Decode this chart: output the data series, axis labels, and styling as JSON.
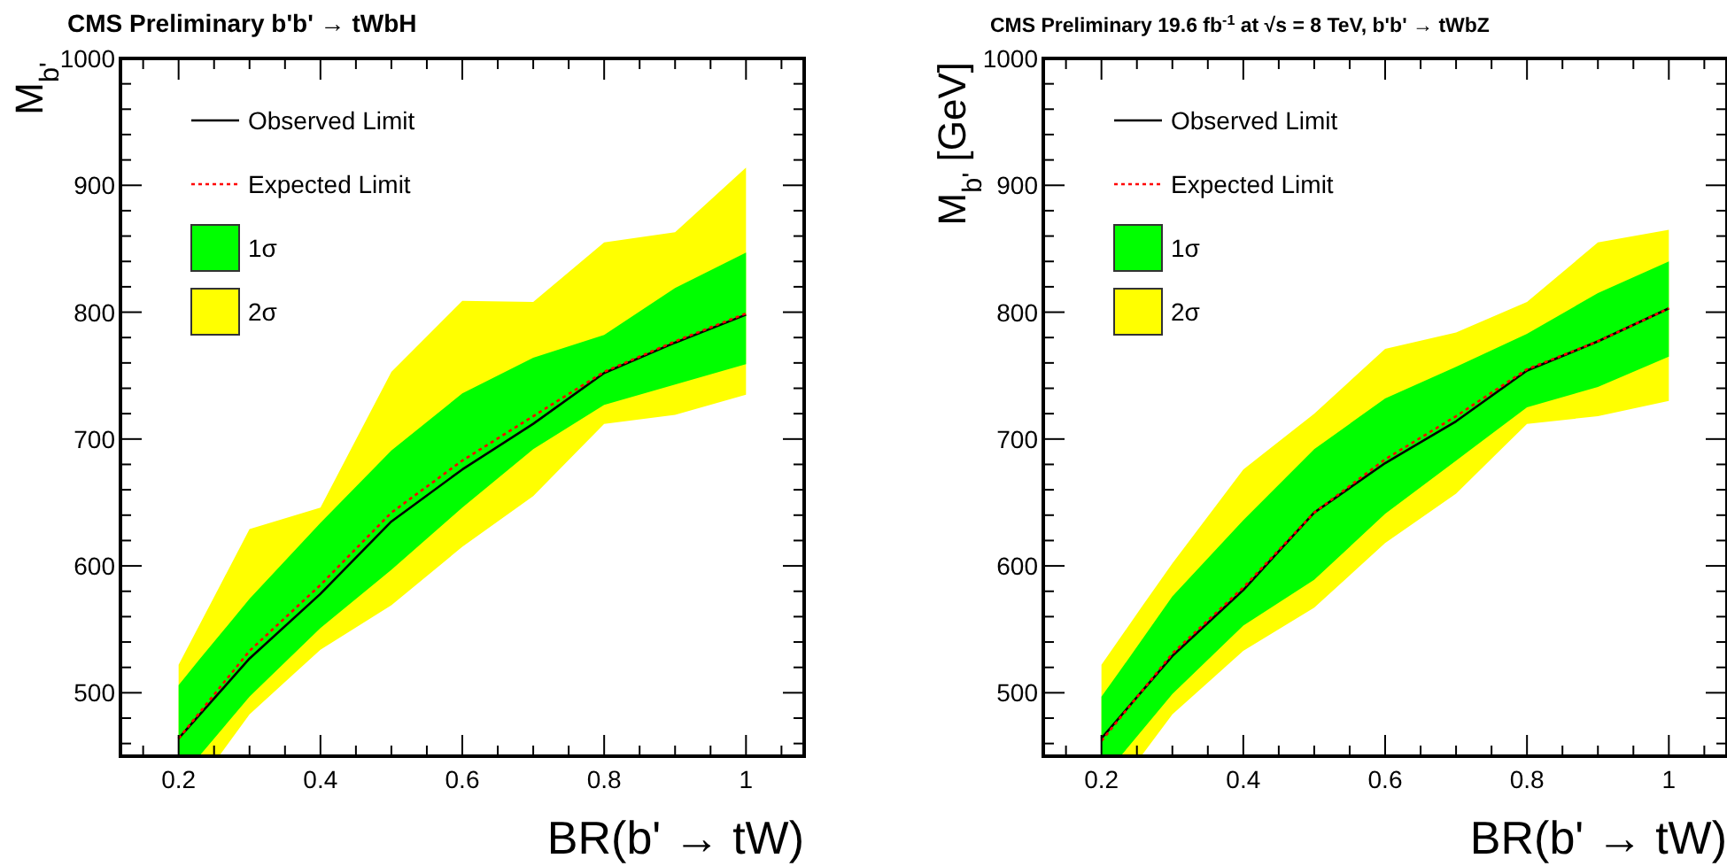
{
  "chart_data": [
    {
      "type": "line",
      "title": "CMS Preliminary b'b' → tWbH",
      "xlabel": "BR(b' → tW)",
      "ylabel": "M$_{b'}$",
      "xlim": [
        0.118,
        1.082
      ],
      "ylim": [
        450,
        1000
      ],
      "xticks": [
        {
          "value": 0.15,
          "label": null
        },
        0.2,
        {
          "value": 0.25,
          "label": null
        },
        {
          "value": 0.3,
          "label": null
        },
        {
          "value": 0.35,
          "label": null
        },
        0.4,
        {
          "value": 0.45,
          "label": null
        },
        {
          "value": 0.5,
          "label": null
        },
        {
          "value": 0.55,
          "label": null
        },
        0.6,
        {
          "value": 0.65,
          "label": null
        },
        {
          "value": 0.7,
          "label": null
        },
        {
          "value": 0.75,
          "label": null
        },
        0.8,
        {
          "value": 0.85,
          "label": null
        },
        {
          "value": 0.9,
          "label": null
        },
        {
          "value": 0.95,
          "label": null
        },
        1,
        {
          "value": 1.05,
          "label": null
        }
      ],
      "yticks": [
        {
          "value": 460,
          "label": null
        },
        {
          "value": 480,
          "label": null
        },
        500,
        {
          "value": 520,
          "label": null
        },
        {
          "value": 540,
          "label": null
        },
        {
          "value": 560,
          "label": null
        },
        {
          "value": 580,
          "label": null
        },
        600,
        {
          "value": 620,
          "label": null
        },
        {
          "value": 640,
          "label": null
        },
        {
          "value": 660,
          "label": null
        },
        {
          "value": 680,
          "label": null
        },
        700,
        {
          "value": 720,
          "label": null
        },
        {
          "value": 740,
          "label": null
        },
        {
          "value": 760,
          "label": null
        },
        {
          "value": 780,
          "label": null
        },
        800,
        {
          "value": 820,
          "label": null
        },
        {
          "value": 840,
          "label": null
        },
        {
          "value": 860,
          "label": null
        },
        {
          "value": 880,
          "label": null
        },
        900,
        {
          "value": 920,
          "label": null
        },
        {
          "value": 940,
          "label": null
        },
        {
          "value": 960,
          "label": null
        },
        {
          "value": 980,
          "label": null
        },
        1000
      ],
      "legend": "top left",
      "x": [
        0.2,
        0.3,
        0.4,
        0.5,
        0.6,
        0.7,
        0.8,
        0.9,
        1.0
      ],
      "series": [
        {
          "name": "Observed Limit",
          "color": "#000000",
          "line_style": "solid",
          "values": [
            464,
            527,
            578,
            635,
            676,
            712,
            752,
            776,
            798
          ]
        },
        {
          "name": "Expected Limit",
          "color": "#ff0000",
          "line_style": "dotted",
          "values": [
            464,
            533,
            585,
            642,
            683,
            718,
            753,
            777,
            799
          ]
        },
        {
          "name": "1σ",
          "type": "area",
          "color": "#00ff00",
          "x": [
            0.2,
            0.229,
            0.3,
            0.4,
            0.5,
            0.6,
            0.7,
            0.8,
            0.9,
            1.0
          ],
          "values": [
            null,
            null,
            null,
            null,
            null,
            null,
            null,
            null,
            null,
            null
          ],
          "lower": [
            450,
            450,
            497,
            551,
            597,
            646,
            692,
            727,
            743,
            759
          ],
          "upper": [
            506,
            526,
            574,
            634,
            691,
            736,
            764,
            782,
            819,
            847
          ]
        },
        {
          "name": "2σ",
          "type": "area",
          "color": "#ffff00",
          "x": [
            0.2,
            0.257,
            0.3,
            0.4,
            0.5,
            0.6,
            0.7,
            0.8,
            0.9,
            1.0
          ],
          "values": [
            null,
            null,
            null,
            null,
            null,
            null,
            null,
            null,
            null,
            null
          ],
          "lower": [
            450,
            450,
            483,
            534,
            569,
            615,
            655,
            712,
            719,
            735
          ],
          "upper": [
            522,
            583,
            629,
            646,
            753,
            809,
            808,
            855,
            863,
            914
          ]
        }
      ]
    },
    {
      "type": "line",
      "title": "CMS Preliminary 19.6 fb$^{-1}$ at  √s = 8 TeV, b'b' → tWbZ",
      "xlabel": "BR(b' → tW)",
      "ylabel": "M$_{b'}$ [GeV]",
      "xlim": [
        0.118,
        1.082
      ],
      "ylim": [
        450,
        1000
      ],
      "xticks": [
        {
          "value": 0.15,
          "label": null
        },
        0.2,
        {
          "value": 0.25,
          "label": null
        },
        {
          "value": 0.3,
          "label": null
        },
        {
          "value": 0.35,
          "label": null
        },
        0.4,
        {
          "value": 0.45,
          "label": null
        },
        {
          "value": 0.5,
          "label": null
        },
        {
          "value": 0.55,
          "label": null
        },
        0.6,
        {
          "value": 0.65,
          "label": null
        },
        {
          "value": 0.7,
          "label": null
        },
        {
          "value": 0.75,
          "label": null
        },
        0.8,
        {
          "value": 0.85,
          "label": null
        },
        {
          "value": 0.9,
          "label": null
        },
        {
          "value": 0.95,
          "label": null
        },
        1,
        {
          "value": 1.05,
          "label": null
        }
      ],
      "yticks": [
        {
          "value": 460,
          "label": null
        },
        {
          "value": 480,
          "label": null
        },
        500,
        {
          "value": 520,
          "label": null
        },
        {
          "value": 540,
          "label": null
        },
        {
          "value": 560,
          "label": null
        },
        {
          "value": 580,
          "label": null
        },
        600,
        {
          "value": 620,
          "label": null
        },
        {
          "value": 640,
          "label": null
        },
        {
          "value": 660,
          "label": null
        },
        {
          "value": 680,
          "label": null
        },
        700,
        {
          "value": 720,
          "label": null
        },
        {
          "value": 740,
          "label": null
        },
        {
          "value": 760,
          "label": null
        },
        {
          "value": 780,
          "label": null
        },
        800,
        {
          "value": 820,
          "label": null
        },
        {
          "value": 840,
          "label": null
        },
        {
          "value": 860,
          "label": null
        },
        {
          "value": 880,
          "label": null
        },
        900,
        {
          "value": 920,
          "label": null
        },
        {
          "value": 940,
          "label": null
        },
        {
          "value": 960,
          "label": null
        },
        {
          "value": 980,
          "label": null
        },
        1000
      ],
      "legend": "top left",
      "x": [
        0.2,
        0.3,
        0.4,
        0.5,
        0.6,
        0.7,
        0.8,
        0.9,
        1.0
      ],
      "series": [
        {
          "name": "Observed Limit",
          "color": "#000000",
          "line_style": "solid",
          "values": [
            464,
            529,
            581,
            642,
            681,
            714,
            754,
            777,
            803
          ]
        },
        {
          "name": "Expected Limit",
          "color": "#ff0000",
          "line_style": "dotted",
          "values": [
            462,
            531,
            583,
            642,
            684,
            718,
            755,
            777,
            803
          ]
        },
        {
          "name": "1σ",
          "type": "area",
          "color": "#00ff00",
          "x": [
            0.2,
            0.227,
            0.3,
            0.4,
            0.5,
            0.6,
            0.7,
            0.8,
            0.9,
            1.0
          ],
          "values": [
            null,
            null,
            null,
            null,
            null,
            null,
            null,
            null,
            null,
            null
          ],
          "lower": [
            450,
            450,
            499,
            553,
            589,
            641,
            683,
            725,
            741,
            765
          ],
          "upper": [
            497,
            518,
            576,
            636,
            692,
            732,
            757,
            783,
            815,
            840
          ]
        },
        {
          "name": "2σ",
          "type": "area",
          "color": "#ffff00",
          "x": [
            0.2,
            0.256,
            0.3,
            0.4,
            0.5,
            0.6,
            0.7,
            0.8,
            0.9,
            1.0
          ],
          "values": [
            null,
            null,
            null,
            null,
            null,
            null,
            null,
            null,
            null,
            null
          ],
          "lower": [
            450,
            450,
            483,
            533,
            567,
            618,
            657,
            712,
            718,
            730
          ],
          "upper": [
            522,
            567,
            602,
            676,
            720,
            771,
            784,
            808,
            855,
            865
          ]
        }
      ]
    }
  ]
}
